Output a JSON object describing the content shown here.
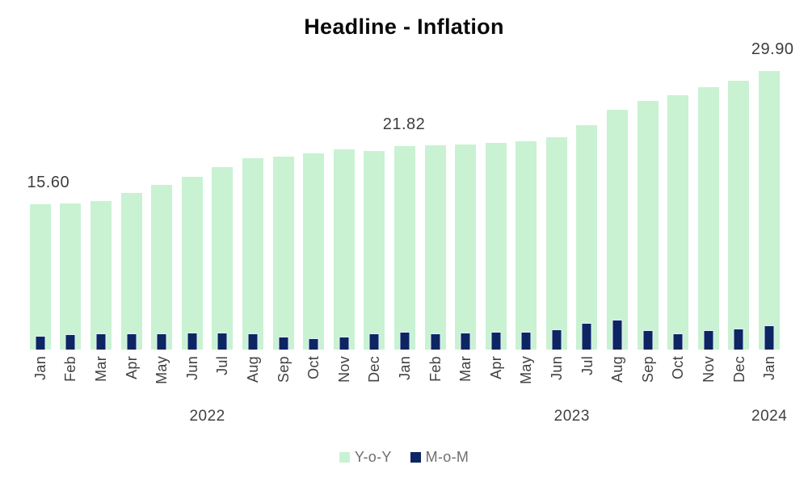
{
  "title": "Headline - Inflation",
  "colors": {
    "background": "#ffffff",
    "yoy_green": "#c9f2d3",
    "mom_navy": "#0d2563",
    "mom_border": "#e2edf8",
    "data_label_text": "#3d3d3d",
    "axis_text": "#404040",
    "legend_text": "#6e6e6e",
    "title_text": "#0a0a0a"
  },
  "chart_data": {
    "type": "bar",
    "title": "Headline - Inflation",
    "categories": [
      "Jan",
      "Feb",
      "Mar",
      "Apr",
      "May",
      "Jun",
      "Jul",
      "Aug",
      "Sep",
      "Oct",
      "Nov",
      "Dec",
      "Jan",
      "Feb",
      "Mar",
      "Apr",
      "May",
      "Jun",
      "Jul",
      "Aug",
      "Sep",
      "Oct",
      "Nov",
      "Dec",
      "Jan"
    ],
    "year_groups": [
      {
        "label": "2022",
        "start": 0,
        "span": 12
      },
      {
        "label": "2023",
        "start": 12,
        "span": 12
      },
      {
        "label": "2024",
        "start": 24,
        "span": 1
      }
    ],
    "series": [
      {
        "name": "Y-o-Y",
        "color": "#c9f2d3",
        "values": [
          15.6,
          15.7,
          15.92,
          16.82,
          17.71,
          18.6,
          19.64,
          20.52,
          20.77,
          21.09,
          21.47,
          21.34,
          21.82,
          21.91,
          22.04,
          22.22,
          22.41,
          22.79,
          24.08,
          25.8,
          26.72,
          27.33,
          28.2,
          28.92,
          29.9
        ]
      },
      {
        "name": "M-o-M",
        "color": "#0d2563",
        "values": [
          1.47,
          1.63,
          1.74,
          1.76,
          1.78,
          1.82,
          1.82,
          1.77,
          1.36,
          1.24,
          1.39,
          1.71,
          1.87,
          1.71,
          1.86,
          1.91,
          1.94,
          2.13,
          2.89,
          3.18,
          2.1,
          1.73,
          2.09,
          2.29,
          2.64
        ]
      }
    ],
    "data_labels": [
      {
        "text": "15.60",
        "index": 0,
        "dx": 10
      },
      {
        "text": "21.82",
        "index": 12,
        "dx": -1
      },
      {
        "text": "29.90",
        "index": 24,
        "dx": 4
      }
    ],
    "ylim": [
      0,
      30.35
    ],
    "grid": false,
    "axis_line": false,
    "legend_position": "bottom"
  },
  "legend": {
    "items": [
      {
        "label": "Y-o-Y",
        "color": "#c9f2d3"
      },
      {
        "label": "M-o-M",
        "color": "#0d2563"
      }
    ]
  }
}
